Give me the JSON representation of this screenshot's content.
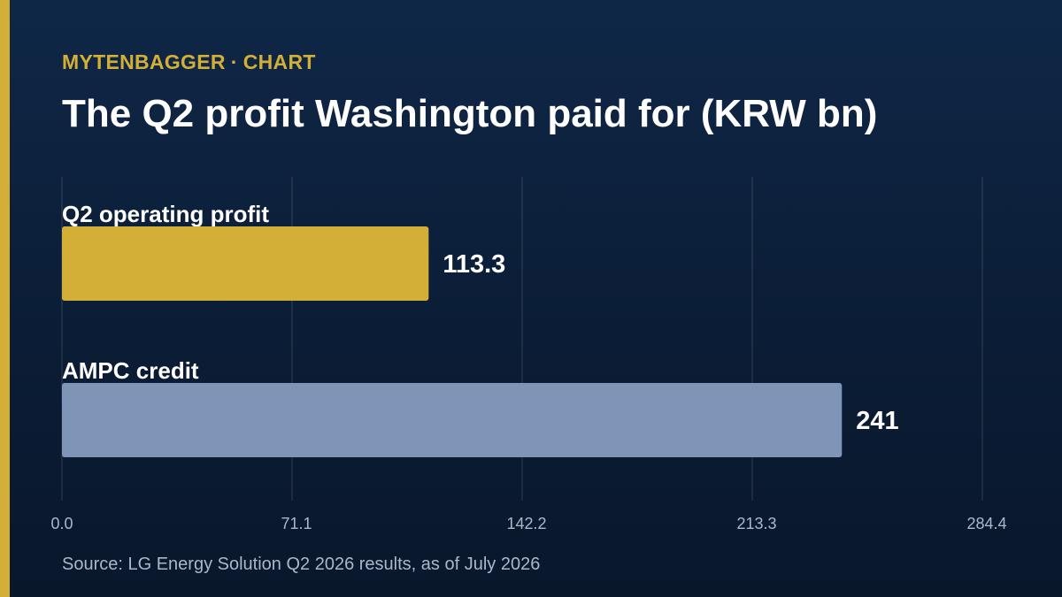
{
  "header": {
    "brand": "MYTENBAGGER",
    "separator": "·",
    "section": "CHART"
  },
  "chart_data": {
    "type": "bar",
    "orientation": "horizontal",
    "title": "The Q2 profit Washington paid for (KRW bn)",
    "categories": [
      "Q2 operating profit",
      "AMPC credit"
    ],
    "values": [
      113.3,
      241
    ],
    "value_labels": [
      "113.3",
      "241"
    ],
    "bar_colors": [
      "#d4af37",
      "#7f95b7"
    ],
    "xlim": [
      0,
      284.4
    ],
    "x_ticks": [
      "0.0",
      "71.1",
      "142.2",
      "213.3",
      "284.4"
    ],
    "grid": true,
    "legend": "none",
    "xlabel": "",
    "ylabel": ""
  },
  "source": "Source: LG Energy Solution Q2 2026 results, as of July 2026"
}
